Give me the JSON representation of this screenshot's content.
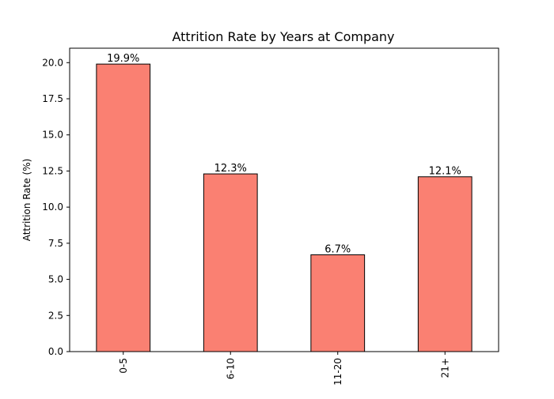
{
  "chart_data": {
    "type": "bar",
    "title": "Attrition Rate by Years at Company",
    "xlabel": "",
    "ylabel": "Attrition Rate (%)",
    "categories": [
      "0-5",
      "6-10",
      "11-20",
      "21+"
    ],
    "values": [
      19.9,
      12.3,
      6.7,
      12.1
    ],
    "data_labels": [
      "19.9%",
      "12.3%",
      "6.7%",
      "12.1%"
    ],
    "ylim": [
      0,
      21
    ],
    "yticks": [
      "0.0",
      "2.5",
      "5.0",
      "7.5",
      "10.0",
      "12.5",
      "15.0",
      "17.5",
      "20.0"
    ],
    "x_tick_rotation": "vertical",
    "grid": false,
    "legend": "none",
    "colors": {
      "bar_fill": "#fa8072",
      "bar_edge": "#000000",
      "axes": "#000000",
      "background": "#ffffff"
    }
  }
}
